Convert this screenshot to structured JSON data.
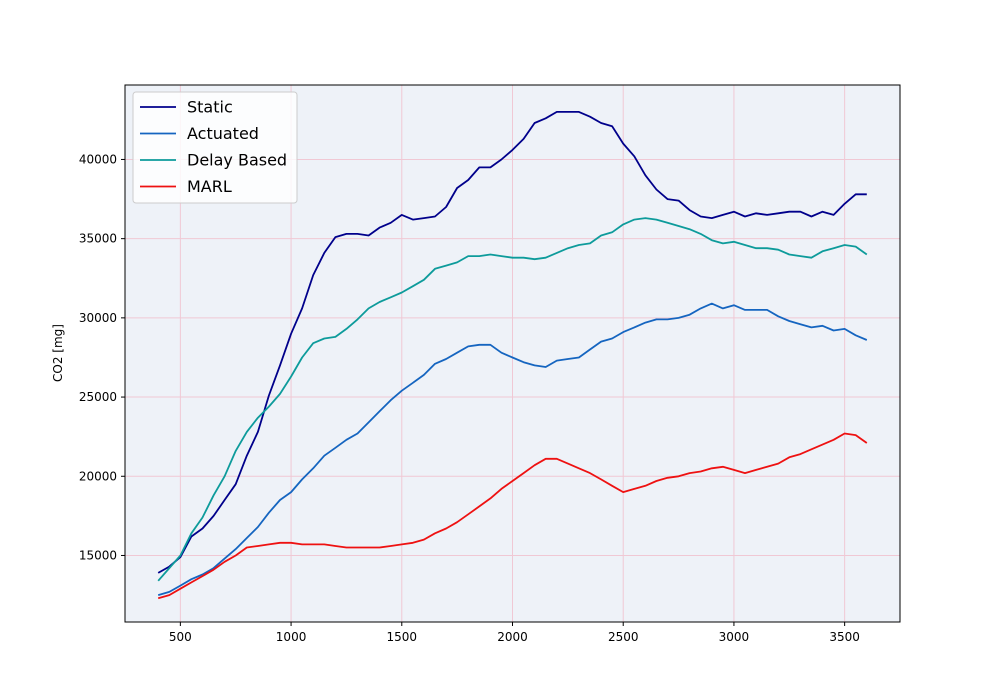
{
  "chart_data": {
    "type": "line",
    "title": "",
    "xlabel": "",
    "ylabel": "CO2 [mg]",
    "xlim": [
      250,
      3750
    ],
    "ylim": [
      10800,
      44700
    ],
    "xticks": [
      500,
      1000,
      1500,
      2000,
      2500,
      3000,
      3500
    ],
    "yticks": [
      15000,
      20000,
      25000,
      30000,
      35000,
      40000
    ],
    "grid": true,
    "background": "#eef2f8",
    "grid_color": "#f0c8d4",
    "legend_position": "top-left",
    "x": [
      400,
      450,
      500,
      550,
      600,
      650,
      700,
      750,
      800,
      850,
      900,
      950,
      1000,
      1050,
      1100,
      1150,
      1200,
      1250,
      1300,
      1350,
      1400,
      1450,
      1500,
      1550,
      1600,
      1650,
      1700,
      1750,
      1800,
      1850,
      1900,
      1950,
      2000,
      2050,
      2100,
      2150,
      2200,
      2250,
      2300,
      2350,
      2400,
      2450,
      2500,
      2550,
      2600,
      2650,
      2700,
      2750,
      2800,
      2850,
      2900,
      2950,
      3000,
      3050,
      3100,
      3150,
      3200,
      3250,
      3300,
      3350,
      3400,
      3450,
      3500,
      3550,
      3600
    ],
    "series": [
      {
        "name": "Static",
        "color": "#00008b",
        "values": [
          13900,
          14300,
          14900,
          16200,
          16700,
          17500,
          18500,
          19500,
          21300,
          22800,
          25100,
          27000,
          29000,
          30600,
          32700,
          34100,
          35100,
          35300,
          35300,
          35200,
          35700,
          36000,
          36500,
          36200,
          36300,
          36400,
          37000,
          38200,
          38700,
          39500,
          39500,
          40000,
          40600,
          41300,
          42300,
          42600,
          43000,
          43000,
          43000,
          42700,
          42300,
          42100,
          41000,
          40200,
          39000,
          38100,
          37500,
          37400,
          36800,
          36400,
          36300,
          36500,
          36700,
          36400,
          36600,
          36500,
          36600,
          36700,
          36700,
          36400,
          36700,
          36500,
          37200,
          37800,
          37800
        ]
      },
      {
        "name": "Actuated",
        "color": "#1565c0",
        "values": [
          12500,
          12700,
          13100,
          13500,
          13800,
          14200,
          14800,
          15400,
          16100,
          16800,
          17700,
          18500,
          19000,
          19800,
          20500,
          21300,
          21800,
          22300,
          22700,
          23400,
          24100,
          24800,
          25400,
          25900,
          26400,
          27100,
          27400,
          27800,
          28200,
          28300,
          28300,
          27800,
          27500,
          27200,
          27000,
          26900,
          27300,
          27400,
          27500,
          28000,
          28500,
          28700,
          29100,
          29400,
          29700,
          29900,
          29900,
          30000,
          30200,
          30600,
          30900,
          30600,
          30800,
          30500,
          30500,
          30500,
          30100,
          29800,
          29600,
          29400,
          29500,
          29200,
          29300,
          28900,
          28600
        ]
      },
      {
        "name": "Delay Based",
        "color": "#0d9b9b",
        "values": [
          13400,
          14200,
          15000,
          16400,
          17400,
          18800,
          20000,
          21600,
          22800,
          23700,
          24400,
          25200,
          26300,
          27500,
          28400,
          28700,
          28800,
          29300,
          29900,
          30600,
          31000,
          31300,
          31600,
          32000,
          32400,
          33100,
          33300,
          33500,
          33900,
          33900,
          34000,
          33900,
          33800,
          33800,
          33700,
          33800,
          34100,
          34400,
          34600,
          34700,
          35200,
          35400,
          35900,
          36200,
          36300,
          36200,
          36000,
          35800,
          35600,
          35300,
          34900,
          34700,
          34800,
          34600,
          34400,
          34400,
          34300,
          34000,
          33900,
          33800,
          34200,
          34400,
          34600,
          34500,
          34000
        ]
      },
      {
        "name": "MARL",
        "color": "#ee1111",
        "values": [
          12300,
          12500,
          12900,
          13300,
          13700,
          14100,
          14600,
          15000,
          15500,
          15600,
          15700,
          15800,
          15800,
          15700,
          15700,
          15700,
          15600,
          15500,
          15500,
          15500,
          15500,
          15600,
          15700,
          15800,
          16000,
          16400,
          16700,
          17100,
          17600,
          18100,
          18600,
          19200,
          19700,
          20200,
          20700,
          21100,
          21100,
          20800,
          20500,
          20200,
          19800,
          19400,
          19000,
          19200,
          19400,
          19700,
          19900,
          20000,
          20200,
          20300,
          20500,
          20600,
          20400,
          20200,
          20400,
          20600,
          20800,
          21200,
          21400,
          21700,
          22000,
          22300,
          22700,
          22600,
          22100
        ]
      }
    ]
  }
}
